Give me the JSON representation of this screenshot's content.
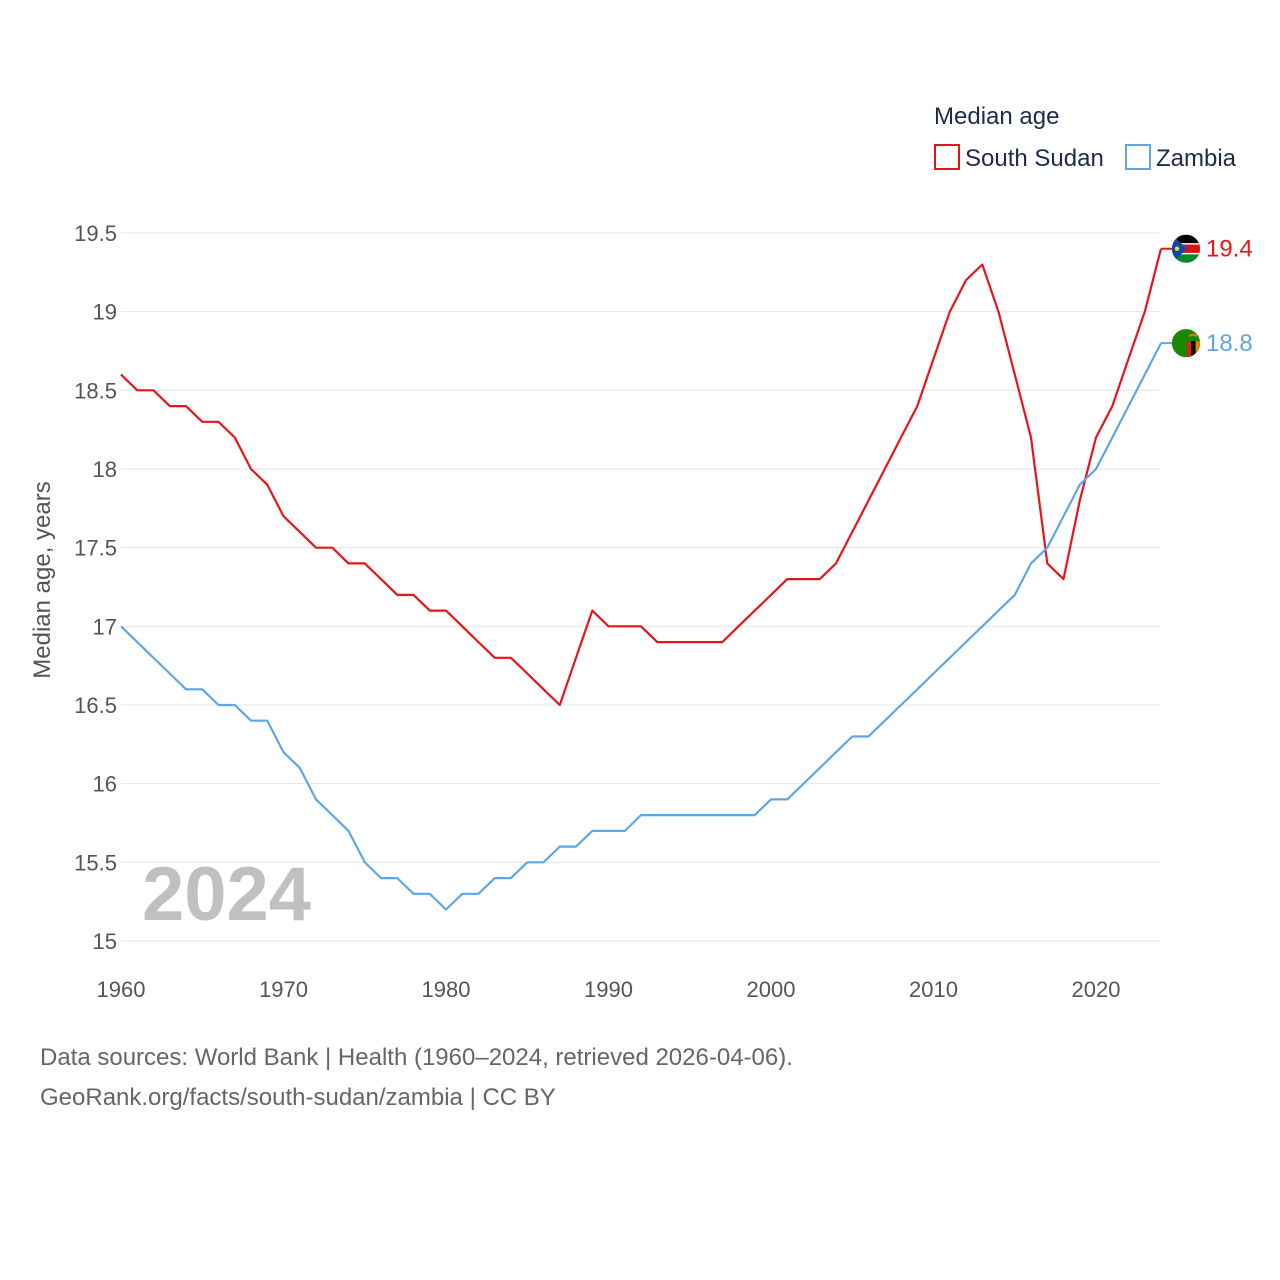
{
  "chart_data": {
    "type": "line",
    "title": "",
    "legend_title": "Median age",
    "xlabel": "",
    "ylabel": "Median age, years",
    "xlim": [
      1960,
      2024
    ],
    "ylim": [
      15,
      19.5
    ],
    "x_ticks": [
      1960,
      1970,
      1980,
      1990,
      2000,
      2010,
      2020
    ],
    "y_ticks": [
      15,
      15.5,
      16,
      16.5,
      17,
      17.5,
      18,
      18.5,
      19,
      19.5
    ],
    "y_tick_labels": [
      "15",
      "15.5",
      "16",
      "16.5",
      "17",
      "17.5",
      "18",
      "18.5",
      "19",
      "19.5"
    ],
    "current_year_label": "2024",
    "x": [
      1960,
      1961,
      1962,
      1963,
      1964,
      1965,
      1966,
      1967,
      1968,
      1969,
      1970,
      1971,
      1972,
      1973,
      1974,
      1975,
      1976,
      1977,
      1978,
      1979,
      1980,
      1981,
      1982,
      1983,
      1984,
      1985,
      1986,
      1987,
      1988,
      1989,
      1990,
      1991,
      1992,
      1993,
      1994,
      1995,
      1996,
      1997,
      1998,
      1999,
      2000,
      2001,
      2002,
      2003,
      2004,
      2005,
      2006,
      2007,
      2008,
      2009,
      2010,
      2011,
      2012,
      2013,
      2014,
      2015,
      2016,
      2017,
      2018,
      2019,
      2020,
      2021,
      2022,
      2023,
      2024
    ],
    "series": [
      {
        "name": "South Sudan",
        "color": "#e8141c",
        "end_label": "19.4",
        "flag_icon": "south-sudan-flag-icon",
        "values": [
          18.6,
          18.5,
          18.5,
          18.4,
          18.4,
          18.3,
          18.3,
          18.2,
          18.0,
          17.9,
          17.7,
          17.6,
          17.5,
          17.5,
          17.4,
          17.4,
          17.3,
          17.2,
          17.2,
          17.1,
          17.1,
          17.0,
          16.9,
          16.8,
          16.8,
          16.7,
          16.6,
          16.5,
          16.8,
          17.1,
          17.0,
          17.0,
          17.0,
          16.9,
          16.9,
          16.9,
          16.9,
          16.9,
          17.0,
          17.1,
          17.2,
          17.3,
          17.3,
          17.3,
          17.4,
          17.6,
          17.8,
          18.0,
          18.2,
          18.4,
          18.7,
          19.0,
          19.2,
          19.3,
          19.0,
          18.6,
          18.2,
          17.4,
          17.3,
          17.8,
          18.2,
          18.4,
          18.7,
          19.0,
          19.4
        ]
      },
      {
        "name": "Zambia",
        "color": "#5ea7e6",
        "end_label": "18.8",
        "flag_icon": "zambia-flag-icon",
        "values": [
          17.0,
          16.9,
          16.8,
          16.7,
          16.6,
          16.6,
          16.5,
          16.5,
          16.4,
          16.4,
          16.2,
          16.1,
          15.9,
          15.8,
          15.7,
          15.5,
          15.4,
          15.4,
          15.3,
          15.3,
          15.2,
          15.3,
          15.3,
          15.4,
          15.4,
          15.5,
          15.5,
          15.6,
          15.6,
          15.7,
          15.7,
          15.7,
          15.8,
          15.8,
          15.8,
          15.8,
          15.8,
          15.8,
          15.8,
          15.8,
          15.9,
          15.9,
          16.0,
          16.1,
          16.2,
          16.3,
          16.3,
          16.4,
          16.5,
          16.6,
          16.7,
          16.8,
          16.9,
          17.0,
          17.1,
          17.2,
          17.4,
          17.5,
          17.7,
          17.9,
          18.0,
          18.2,
          18.4,
          18.6,
          18.8
        ]
      }
    ]
  },
  "footer": {
    "line1": "Data sources: World Bank | Health (1960–2024, retrieved 2026-04-06).",
    "line2": "GeoRank.org/facts/south-sudan/zambia | CC BY"
  }
}
